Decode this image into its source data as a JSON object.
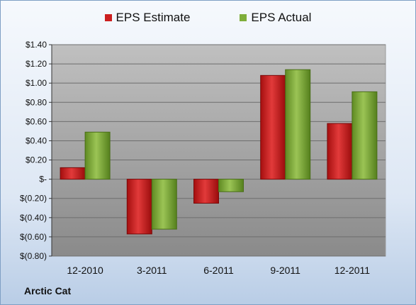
{
  "legend": {
    "estimate_label": "EPS Estimate",
    "actual_label": "EPS Actual"
  },
  "company": "Arctic Cat",
  "colors": {
    "estimate": "#cc1f1f",
    "actual": "#7fae3a",
    "plot_top": "#c0c0c0",
    "plot_bottom": "#8a8a8a"
  },
  "chart_data": {
    "type": "bar",
    "categories": [
      "12-2010",
      "3-2011",
      "6-2011",
      "9-2011",
      "12-2011"
    ],
    "series": [
      {
        "name": "EPS Estimate",
        "values": [
          0.12,
          -0.57,
          -0.25,
          1.08,
          0.58
        ]
      },
      {
        "name": "EPS Actual",
        "values": [
          0.49,
          -0.52,
          -0.13,
          1.14,
          0.91
        ]
      }
    ],
    "ylim": [
      -0.8,
      1.4
    ],
    "yticks": [
      -0.8,
      -0.6,
      -0.4,
      -0.2,
      0,
      0.2,
      0.4,
      0.6,
      0.8,
      1.0,
      1.2,
      1.4
    ],
    "ytick_labels": [
      "$(0.80)",
      "$(0.60)",
      "$(0.40)",
      "$(0.20)",
      "$-",
      "$0.20",
      "$0.40",
      "$0.60",
      "$0.80",
      "$1.00",
      "$1.20",
      "$1.40"
    ],
    "grid": true,
    "legend_position": "top"
  }
}
